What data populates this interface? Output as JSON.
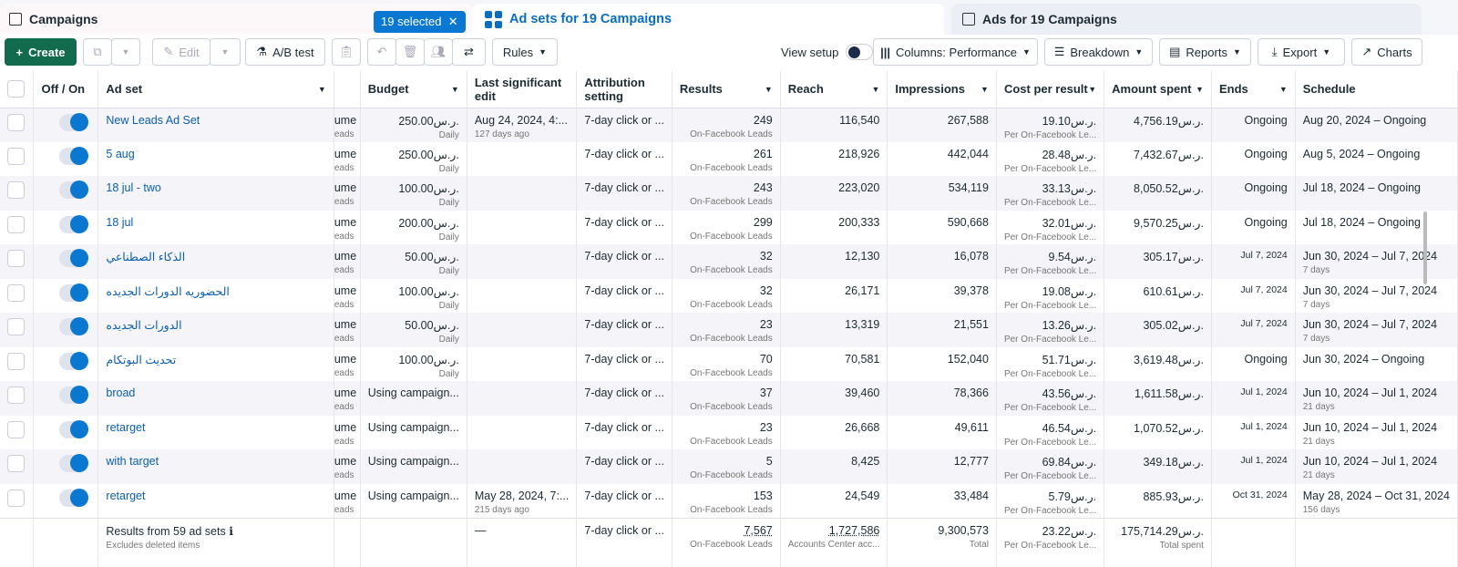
{
  "tabs": {
    "campaigns": "Campaigns",
    "selected": "19 selected",
    "adsets": "Ad sets for 19 Campaigns",
    "ads": "Ads for 19 Campaigns"
  },
  "toolbar": {
    "create": "Create",
    "edit": "Edit",
    "ab_test": "A/B test",
    "rules": "Rules",
    "view_setup": "View setup",
    "columns": "Columns: Performance",
    "breakdown": "Breakdown",
    "reports": "Reports",
    "export": "Export",
    "charts": "Charts"
  },
  "currency": "ر.س.",
  "headers": {
    "offon": "Off / On",
    "adset": "Ad set",
    "budget": "Budget",
    "last_edit": "Last significant edit",
    "attribution": "Attribution setting",
    "results": "Results",
    "reach": "Reach",
    "impressions": "Impressions",
    "cpr": "Cost per result",
    "spent": "Amount spent",
    "ends": "Ends",
    "schedule": "Schedule"
  },
  "rows": [
    {
      "name": "New Leads Ad Set",
      "hidden": "ume",
      "hidden_sub": "eads",
      "budget": "250.00",
      "budget_sub": "Daily",
      "edit": "Aug 24, 2024, 4:...",
      "edit_sub": "127 days ago",
      "attr": "7-day click or ...",
      "results": "249",
      "results_sub": "On-Facebook Leads",
      "reach": "116,540",
      "impr": "267,588",
      "cpr": "19.10",
      "cpr_sub": "Per On-Facebook Le...",
      "spent": "4,756.19",
      "ends": "Ongoing",
      "schedule": "Aug 20, 2024 – Ongoing",
      "schedule_sub": ""
    },
    {
      "name": "5 aug",
      "hidden": "ume",
      "hidden_sub": "eads",
      "budget": "250.00",
      "budget_sub": "Daily",
      "edit": "",
      "edit_sub": "",
      "attr": "7-day click or ...",
      "results": "261",
      "results_sub": "On-Facebook Leads",
      "reach": "218,926",
      "impr": "442,044",
      "cpr": "28.48",
      "cpr_sub": "Per On-Facebook Le...",
      "spent": "7,432.67",
      "ends": "Ongoing",
      "schedule": "Aug 5, 2024 – Ongoing",
      "schedule_sub": ""
    },
    {
      "name": "18 jul - two",
      "hidden": "ume",
      "hidden_sub": "eads",
      "budget": "100.00",
      "budget_sub": "Daily",
      "edit": "",
      "edit_sub": "",
      "attr": "7-day click or ...",
      "results": "243",
      "results_sub": "On-Facebook Leads",
      "reach": "223,020",
      "impr": "534,119",
      "cpr": "33.13",
      "cpr_sub": "Per On-Facebook Le...",
      "spent": "8,050.52",
      "ends": "Ongoing",
      "schedule": "Jul 18, 2024 – Ongoing",
      "schedule_sub": ""
    },
    {
      "name": "18 jul",
      "hidden": "ume",
      "hidden_sub": "eads",
      "budget": "200.00",
      "budget_sub": "Daily",
      "edit": "",
      "edit_sub": "",
      "attr": "7-day click or ...",
      "results": "299",
      "results_sub": "On-Facebook Leads",
      "reach": "200,333",
      "impr": "590,668",
      "cpr": "32.01",
      "cpr_sub": "Per On-Facebook Le...",
      "spent": "9,570.25",
      "ends": "Ongoing",
      "schedule": "Jul 18, 2024 – Ongoing",
      "schedule_sub": ""
    },
    {
      "name": "الذكاء الصطناعي",
      "hidden": "ume",
      "hidden_sub": "eads",
      "budget": "50.00",
      "budget_sub": "Daily",
      "edit": "",
      "edit_sub": "",
      "attr": "7-day click or ...",
      "results": "32",
      "results_sub": "On-Facebook Leads",
      "reach": "12,130",
      "impr": "16,078",
      "cpr": "9.54",
      "cpr_sub": "Per On-Facebook Le...",
      "spent": "305.17",
      "ends": "Jul 7, 2024",
      "schedule": "Jun 30, 2024 – Jul 7, 2024",
      "schedule_sub": "7 days"
    },
    {
      "name": "الحضوريه الدورات الجديده",
      "hidden": "ume",
      "hidden_sub": "eads",
      "budget": "100.00",
      "budget_sub": "Daily",
      "edit": "",
      "edit_sub": "",
      "attr": "7-day click or ...",
      "results": "32",
      "results_sub": "On-Facebook Leads",
      "reach": "26,171",
      "impr": "39,378",
      "cpr": "19.08",
      "cpr_sub": "Per On-Facebook Le...",
      "spent": "610.61",
      "ends": "Jul 7, 2024",
      "schedule": "Jun 30, 2024 – Jul 7, 2024",
      "schedule_sub": "7 days"
    },
    {
      "name": "الدورات الجديده",
      "hidden": "ume",
      "hidden_sub": "eads",
      "budget": "50.00",
      "budget_sub": "Daily",
      "edit": "",
      "edit_sub": "",
      "attr": "7-day click or ...",
      "results": "23",
      "results_sub": "On-Facebook Leads",
      "reach": "13,319",
      "impr": "21,551",
      "cpr": "13.26",
      "cpr_sub": "Per On-Facebook Le...",
      "spent": "305.02",
      "ends": "Jul 7, 2024",
      "schedule": "Jun 30, 2024 – Jul 7, 2024",
      "schedule_sub": "7 days"
    },
    {
      "name": "تحديث البوتكام",
      "hidden": "ume",
      "hidden_sub": "eads",
      "budget": "100.00",
      "budget_sub": "Daily",
      "edit": "",
      "edit_sub": "",
      "attr": "7-day click or ...",
      "results": "70",
      "results_sub": "On-Facebook Leads",
      "reach": "70,581",
      "impr": "152,040",
      "cpr": "51.71",
      "cpr_sub": "Per On-Facebook Le...",
      "spent": "3,619.48",
      "ends": "Ongoing",
      "schedule": "Jun 30, 2024 – Ongoing",
      "schedule_sub": ""
    },
    {
      "name": "broad",
      "hidden": "ume",
      "hidden_sub": "eads",
      "budget": "Using campaign...",
      "budget_sub": "",
      "edit": "",
      "edit_sub": "",
      "attr": "7-day click or ...",
      "results": "37",
      "results_sub": "On-Facebook Leads",
      "reach": "39,460",
      "impr": "78,366",
      "cpr": "43.56",
      "cpr_sub": "Per On-Facebook Le...",
      "spent": "1,611.58",
      "ends": "Jul 1, 2024",
      "schedule": "Jun 10, 2024 – Jul 1, 2024",
      "schedule_sub": "21 days"
    },
    {
      "name": "retarget",
      "hidden": "ume",
      "hidden_sub": "eads",
      "budget": "Using campaign...",
      "budget_sub": "",
      "edit": "",
      "edit_sub": "",
      "attr": "7-day click or ...",
      "results": "23",
      "results_sub": "On-Facebook Leads",
      "reach": "26,668",
      "impr": "49,611",
      "cpr": "46.54",
      "cpr_sub": "Per On-Facebook Le...",
      "spent": "1,070.52",
      "ends": "Jul 1, 2024",
      "schedule": "Jun 10, 2024 – Jul 1, 2024",
      "schedule_sub": "21 days"
    },
    {
      "name": "with target",
      "hidden": "ume",
      "hidden_sub": "eads",
      "budget": "Using campaign...",
      "budget_sub": "",
      "edit": "",
      "edit_sub": "",
      "attr": "7-day click or ...",
      "results": "5",
      "results_sub": "On-Facebook Leads",
      "reach": "8,425",
      "impr": "12,777",
      "cpr": "69.84",
      "cpr_sub": "Per On-Facebook Le...",
      "spent": "349.18",
      "ends": "Jul 1, 2024",
      "schedule": "Jun 10, 2024 – Jul 1, 2024",
      "schedule_sub": "21 days"
    },
    {
      "name": "retarget",
      "hidden": "ume",
      "hidden_sub": "eads",
      "budget": "Using campaign...",
      "budget_sub": "",
      "edit": "May 28, 2024, 7:...",
      "edit_sub": "215 days ago",
      "attr": "7-day click or ...",
      "results": "153",
      "results_sub": "On-Facebook Leads",
      "reach": "24,549",
      "impr": "33,484",
      "cpr": "5.79",
      "cpr_sub": "Per On-Facebook Le...",
      "spent": "885.93",
      "ends": "Oct 31, 2024",
      "schedule": "May 28, 2024 – Oct 31, 2024",
      "schedule_sub": "156 days"
    }
  ],
  "footer": {
    "label": "Results from 59 ad sets",
    "sub": "Excludes deleted items",
    "edit": "—",
    "attr": "7-day click or ...",
    "results": "7,567",
    "results_sub": "On-Facebook Leads",
    "reach": "1,727,586",
    "reach_sub": "Accounts Center acc...",
    "impr": "9,300,573",
    "impr_sub": "Total",
    "cpr": "23.22",
    "cpr_sub": "Per On-Facebook Le...",
    "spent": "175,714.29",
    "spent_sub": "Total spent"
  }
}
